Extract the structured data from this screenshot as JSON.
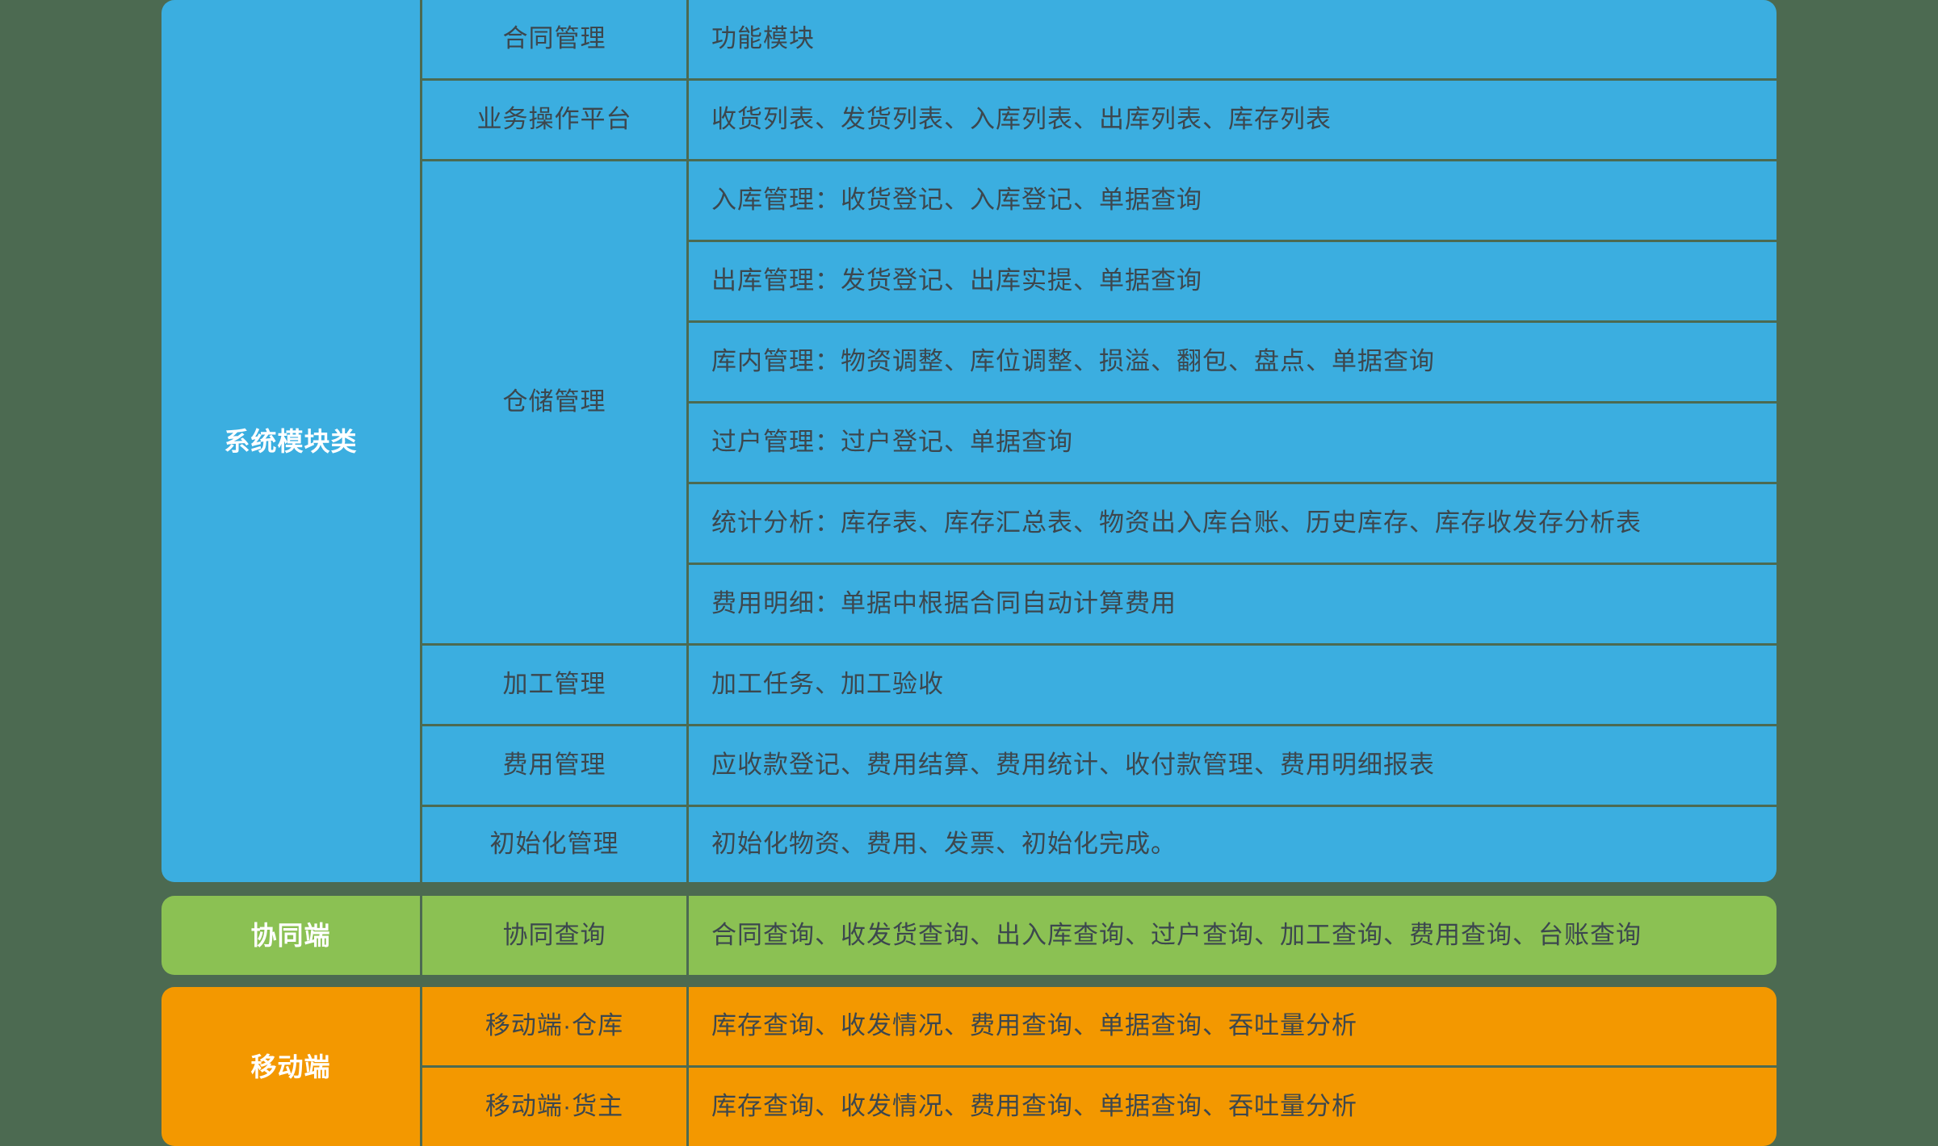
{
  "page": {
    "background_color": "#4C6A51"
  },
  "colors": {
    "system": "#3BAEE0",
    "collab": "#8BC153",
    "mobile": "#F39800",
    "text_dark": "#3C474E",
    "text_light": "#FFFFFF"
  },
  "sections": [
    {
      "id": "system",
      "label": "系统模块类",
      "groups": [
        {
          "name": "合同管理",
          "items": [
            "功能模块"
          ]
        },
        {
          "name": "业务操作平台",
          "items": [
            "收货列表、发货列表、入库列表、出库列表、库存列表"
          ]
        },
        {
          "name": "仓储管理",
          "items": [
            "入库管理：收货登记、入库登记、单据查询",
            "出库管理：发货登记、出库实提、单据查询",
            "库内管理：物资调整、库位调整、损溢、翻包、盘点、单据查询",
            "过户管理：过户登记、单据查询",
            "统计分析：库存表、库存汇总表、物资出入库台账、历史库存、库存收发存分析表",
            "费用明细：单据中根据合同自动计算费用"
          ]
        },
        {
          "name": "加工管理",
          "items": [
            "加工任务、加工验收"
          ]
        },
        {
          "name": "费用管理",
          "items": [
            "应收款登记、费用结算、费用统计、收付款管理、费用明细报表"
          ]
        },
        {
          "name": "初始化管理",
          "items": [
            "初始化物资、费用、发票、初始化完成。"
          ]
        }
      ]
    },
    {
      "id": "collab",
      "label": "协同端",
      "groups": [
        {
          "name": "协同查询",
          "items": [
            "合同查询、收发货查询、出入库查询、过户查询、加工查询、费用查询、台账查询"
          ]
        }
      ]
    },
    {
      "id": "mobile",
      "label": "移动端",
      "groups": [
        {
          "name": "移动端·仓库",
          "items": [
            "库存查询、收发情况、费用查询、单据查询、吞吐量分析"
          ]
        },
        {
          "name": "移动端·货主",
          "items": [
            "库存查询、收发情况、费用查询、单据查询、吞吐量分析"
          ]
        }
      ]
    }
  ]
}
